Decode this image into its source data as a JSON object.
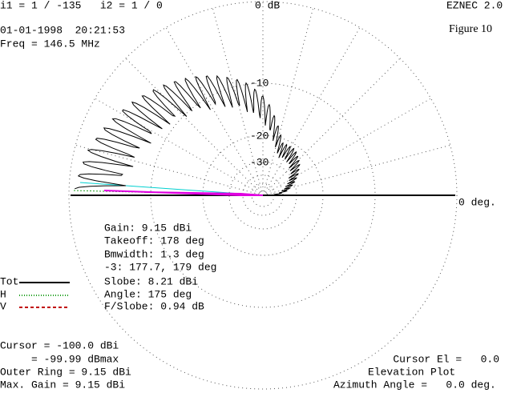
{
  "header": {
    "currents": "i1 = 1 / -135   i2 = 1 / 0",
    "app": "EZNEC 2.0",
    "datetime": "01-01-1998  20:21:53",
    "figure": "Figure 10",
    "freq": "Freq = 146.5 MHz"
  },
  "plot": {
    "ring_labels": [
      "0 dB",
      "-10",
      "-20",
      "-30"
    ],
    "axis_label": "0 deg."
  },
  "stats": [
    "Gain: 9.15 dBi",
    "Takeoff: 178 deg",
    "Bmwidth: 1.3 deg",
    "-3: 177.7, 179 deg",
    "Slobe: 8.21 dBi",
    "Angle: 175 deg",
    "F/Slobe: 0.94 dB"
  ],
  "legend": [
    "Tot",
    "H",
    "V"
  ],
  "footer_left": [
    "Cursor = -100.0 dBi",
    "     = -99.99 dBmax",
    "Outer Ring = 9.15 dBi",
    "Max. Gain = 9.15 dBi"
  ],
  "footer_right": [
    "Cursor El =   0.0",
    "Elevation Plot",
    "Azimuth Angle =   0.0 deg."
  ]
}
